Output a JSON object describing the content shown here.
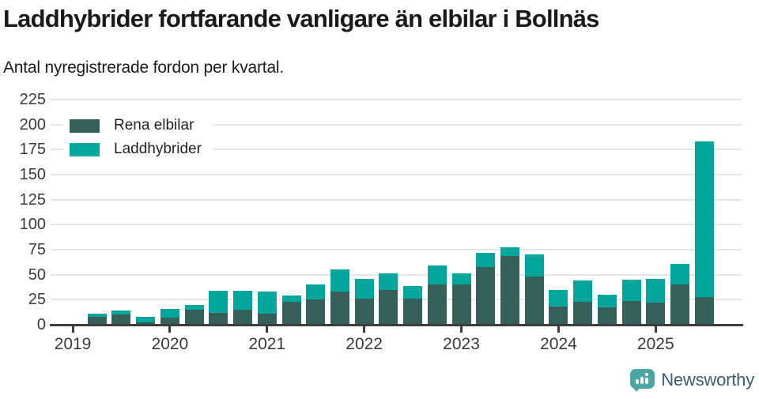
{
  "title": "Laddhybrider fortfarande vanligare än elbilar i Bollnäs",
  "subtitle": "Antal nyregistrerade fordon per kvartal.",
  "legend": {
    "items": [
      {
        "label": "Rena elbilar",
        "color": "#355f59"
      },
      {
        "label": "Laddhybrider",
        "color": "#00a59b"
      }
    ]
  },
  "colors": {
    "rena_elbilar": "#355f59",
    "laddhybrider": "#00a59b",
    "gridline": "#e7e7e7",
    "axis": "#3d3d3d",
    "brand_icon": "#4ba6a3",
    "brand_text": "#3e5a72"
  },
  "chart_data": {
    "type": "bar",
    "stacked": true,
    "title": "Laddhybrider fortfarande vanligare än elbilar i Bollnäs",
    "subtitle": "Antal nyregistrerade fordon per kvartal.",
    "categories": [
      "2019 Q1",
      "2019 Q2",
      "2019 Q3",
      "2019 Q4",
      "2020 Q1",
      "2020 Q2",
      "2020 Q3",
      "2020 Q4",
      "2021 Q1",
      "2021 Q2",
      "2021 Q3",
      "2021 Q4",
      "2022 Q1",
      "2022 Q2",
      "2022 Q3",
      "2022 Q4",
      "2023 Q1",
      "2023 Q2",
      "2023 Q3",
      "2023 Q4",
      "2024 Q1",
      "2024 Q2",
      "2024 Q3",
      "2024 Q4",
      "2025 Q1",
      "2025 Q2",
      "2025 Q3"
    ],
    "series": [
      {
        "name": "Rena elbilar",
        "color": "#355f59",
        "values": [
          0,
          8,
          10,
          2,
          7,
          15,
          12,
          15,
          11,
          23,
          25,
          33,
          26,
          35,
          26,
          40,
          40,
          58,
          69,
          48,
          18,
          23,
          17,
          24,
          22,
          40,
          28
        ]
      },
      {
        "name": "Laddhybrider",
        "color": "#00a59b",
        "values": [
          0,
          3,
          4,
          6,
          9,
          5,
          22,
          19,
          22,
          6,
          15,
          22,
          20,
          16,
          13,
          19,
          11,
          14,
          8,
          22,
          17,
          21,
          13,
          21,
          24,
          21,
          155
        ]
      }
    ],
    "ylabel": "",
    "xlabel": "",
    "ylim": [
      0,
      225
    ],
    "yticks": [
      0,
      25,
      50,
      75,
      100,
      125,
      150,
      175,
      200,
      225
    ],
    "xtick_labels": [
      "2019",
      "2020",
      "2021",
      "2022",
      "2023",
      "2024",
      "2025"
    ],
    "grid": true,
    "legend_position": "top-left"
  },
  "footer": {
    "brand": "Newsworthy"
  }
}
